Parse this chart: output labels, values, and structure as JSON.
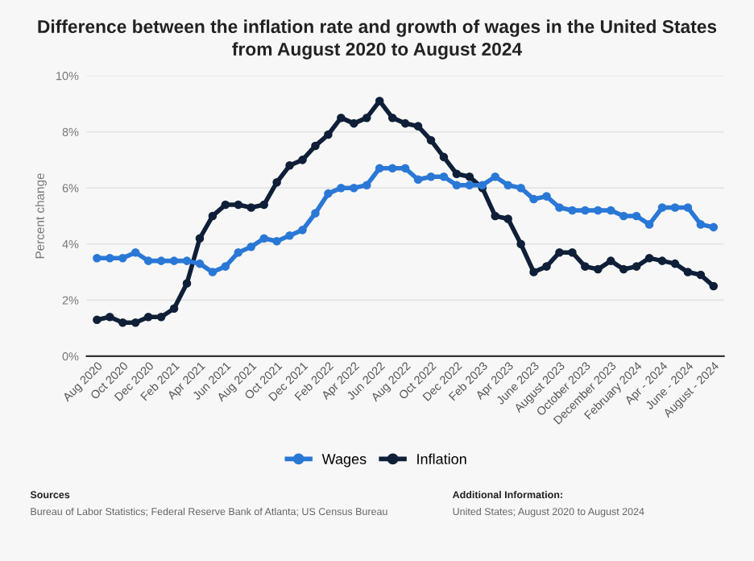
{
  "chart_data": {
    "type": "line",
    "title": "Difference between the inflation rate and growth of wages in the United States\nfrom August 2020 to August 2024",
    "ylabel": "Percent change",
    "categories": [
      "Aug 2020",
      null,
      "Oct 2020",
      null,
      "Dec 2020",
      null,
      "Feb 2021",
      null,
      "Apr 2021",
      null,
      "Jun 2021",
      null,
      "Aug 2021",
      null,
      "Oct 2021",
      null,
      "Dec 2021",
      null,
      "Feb 2022",
      null,
      "Apr 2022",
      null,
      "Jun 2022",
      null,
      "Aug 2022",
      null,
      "Oct 2022",
      null,
      "Dec 2022",
      null,
      "Feb 2023",
      null,
      "Apr 2023",
      null,
      "June 2023",
      null,
      "August 2023",
      null,
      "October 2023",
      null,
      "December 2023",
      null,
      "February 2024",
      null,
      "Apr - 2024",
      null,
      "June - 2024",
      null,
      "August - 2024"
    ],
    "series": [
      {
        "name": "Wages",
        "color": "#2a78d6",
        "values": [
          3.5,
          3.5,
          3.5,
          3.7,
          3.4,
          3.4,
          3.4,
          3.4,
          3.3,
          3.0,
          3.2,
          3.7,
          3.9,
          4.2,
          4.1,
          4.3,
          4.5,
          5.1,
          5.8,
          6.0,
          6.0,
          6.1,
          6.7,
          6.7,
          6.7,
          6.3,
          6.4,
          6.4,
          6.1,
          6.1,
          6.1,
          6.4,
          6.1,
          6.0,
          5.6,
          5.7,
          5.3,
          5.2,
          5.2,
          5.2,
          5.2,
          5.0,
          5.0,
          4.7,
          5.3,
          5.3,
          5.3,
          4.7,
          4.6
        ]
      },
      {
        "name": "Inflation",
        "color": "#0f1f38",
        "values": [
          1.3,
          1.4,
          1.2,
          1.2,
          1.4,
          1.4,
          1.7,
          2.6,
          4.2,
          5.0,
          5.4,
          5.4,
          5.3,
          5.4,
          6.2,
          6.8,
          7.0,
          7.5,
          7.9,
          8.5,
          8.3,
          8.5,
          9.1,
          8.5,
          8.3,
          8.2,
          7.7,
          7.1,
          6.5,
          6.4,
          6.0,
          5.0,
          4.9,
          4.0,
          3.0,
          3.2,
          3.7,
          3.7,
          3.2,
          3.1,
          3.4,
          3.1,
          3.2,
          3.5,
          3.4,
          3.3,
          3.0,
          2.9,
          2.5
        ]
      }
    ],
    "ylim": [
      0,
      10
    ],
    "yticks": [
      {
        "value": 0,
        "label": "0%"
      },
      {
        "value": 2,
        "label": "2%"
      },
      {
        "value": 4,
        "label": "4%"
      },
      {
        "value": 6,
        "label": "6%"
      },
      {
        "value": 8,
        "label": "8%"
      },
      {
        "value": 10,
        "label": "10%"
      }
    ],
    "grid": "y",
    "legend": "bottom",
    "marker": "circle",
    "line_style": "solid",
    "annotations": [
      "Sources",
      "Bureau of Labor Statistics; Federal Reserve Bank of Atlanta; US Census Bureau",
      "Additional Information:",
      "United States; August 2020 to August 2024"
    ]
  }
}
